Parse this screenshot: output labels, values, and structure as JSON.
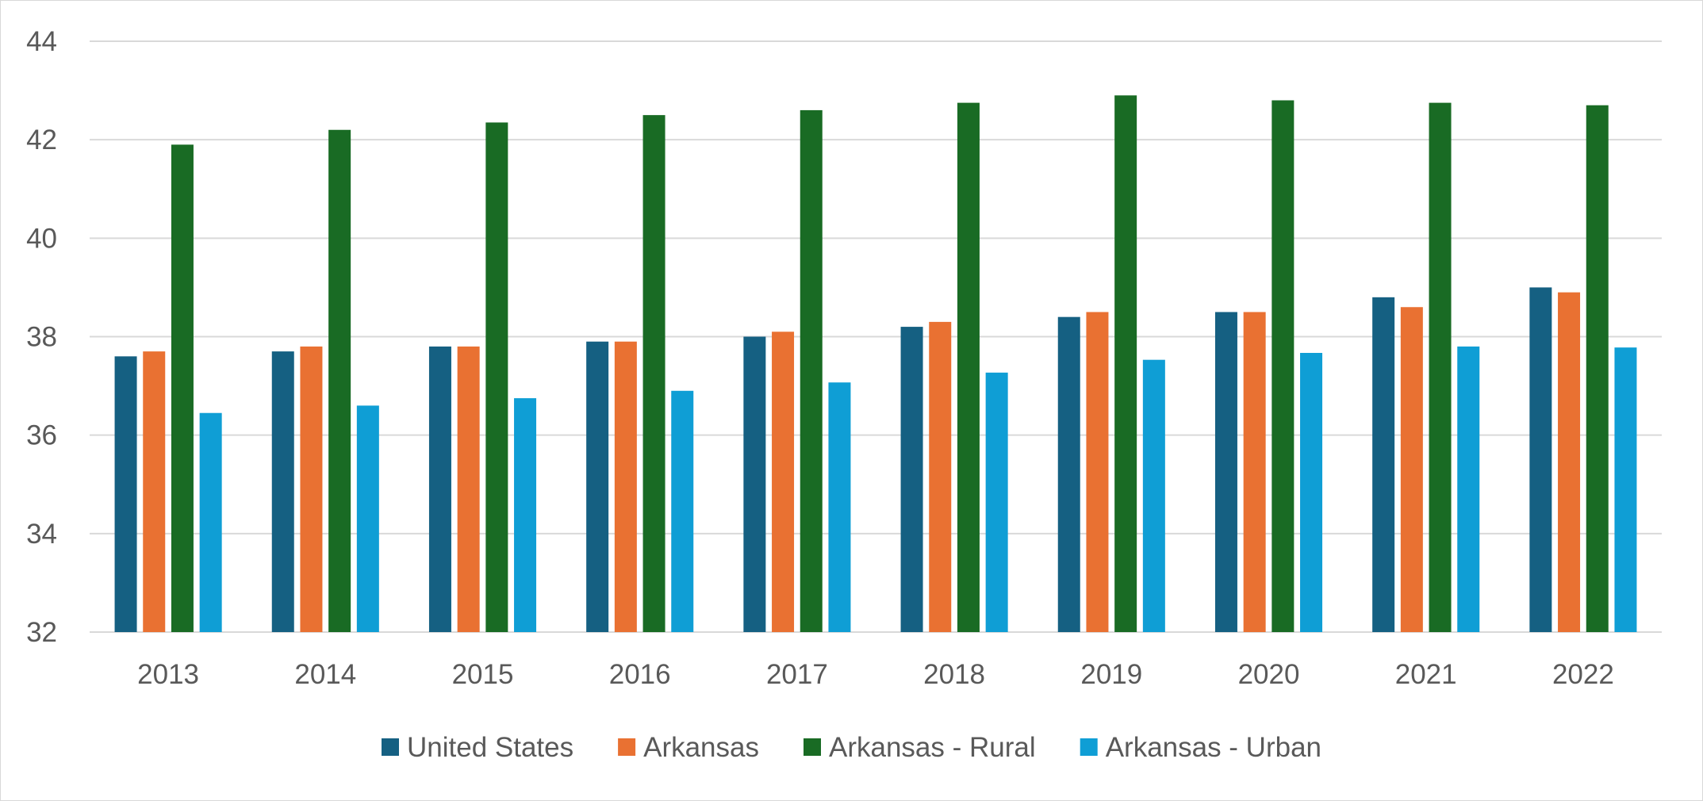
{
  "chart_data": {
    "type": "bar",
    "categories": [
      "2013",
      "2014",
      "2015",
      "2016",
      "2017",
      "2018",
      "2019",
      "2020",
      "2021",
      "2022"
    ],
    "series": [
      {
        "name": "United States",
        "color": "#156082",
        "values": [
          37.6,
          37.7,
          37.8,
          37.9,
          38.0,
          38.2,
          38.4,
          38.5,
          38.8,
          39.0
        ]
      },
      {
        "name": "Arkansas",
        "color": "#E97132",
        "values": [
          37.7,
          37.8,
          37.8,
          37.9,
          38.1,
          38.3,
          38.5,
          38.5,
          38.6,
          38.9
        ]
      },
      {
        "name": "Arkansas - Rural",
        "color": "#196B24",
        "values": [
          41.9,
          42.2,
          42.35,
          42.5,
          42.6,
          42.75,
          42.9,
          42.8,
          42.75,
          42.7
        ]
      },
      {
        "name": "Arkansas - Urban",
        "color": "#0F9ED5",
        "values": [
          36.45,
          36.6,
          36.75,
          36.9,
          37.07,
          37.27,
          37.53,
          37.67,
          37.8,
          37.78
        ]
      }
    ],
    "ylim": [
      32,
      44
    ],
    "yticks": [
      "32",
      "34",
      "36",
      "38",
      "40",
      "42",
      "44"
    ],
    "grid": true,
    "legend_position": "bottom"
  }
}
